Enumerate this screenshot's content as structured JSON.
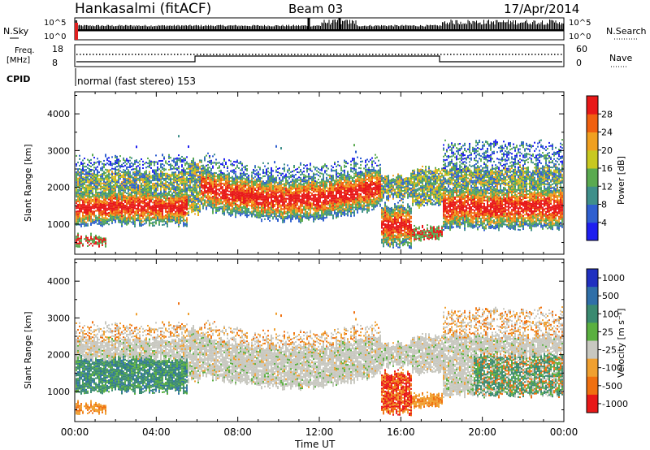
{
  "header": {
    "station": "Hankasalmi (fitACF)",
    "beam": "Beam 03",
    "date": "17/Apr/2014"
  },
  "status_panels": {
    "nsky_label": "N.Sky",
    "nsky_ticks": [
      "10^5",
      "10^0"
    ],
    "nsearch_label": "N.Search",
    "nsearch_ticks": [
      "10^5",
      "10^0"
    ],
    "freq_label_1": "Freq.",
    "freq_label_2": "[MHz]",
    "freq_ticks": [
      "18",
      "8"
    ],
    "nave_label": "Nave",
    "nave_ticks": [
      "60",
      "0"
    ],
    "cpid_label": "CPID",
    "cpid_text": "normal (fast stereo) 153"
  },
  "chart_data": [
    {
      "type": "heatmap",
      "name": "power",
      "ylabel": "Slant Range [km]",
      "yticks": [
        1000,
        2000,
        3000,
        4000
      ],
      "ylim": [
        180,
        4600
      ],
      "xlim": [
        "00:00",
        "24:00"
      ],
      "colorbar": {
        "label": "Power [dB]",
        "ticks": [
          "4",
          "8",
          "12",
          "16",
          "20",
          "24",
          "28"
        ],
        "colors": [
          "#1e1ef0",
          "#2f5fd0",
          "#3f8f8a",
          "#5aaa50",
          "#c8c820",
          "#f0a020",
          "#f06010",
          "#e81818"
        ]
      }
    },
    {
      "type": "heatmap",
      "name": "velocity",
      "ylabel": "Slant Range [km]",
      "yticks": [
        1000,
        2000,
        3000,
        4000
      ],
      "ylim": [
        180,
        4600
      ],
      "xlim": [
        "00:00",
        "24:00"
      ],
      "xlabel": "Time UT",
      "xticks": [
        "00:00",
        "04:00",
        "08:00",
        "12:00",
        "16:00",
        "20:00",
        "00:00"
      ],
      "colorbar": {
        "label": "Velocity [m s⁻¹]",
        "ticks": [
          "1000",
          "500",
          "100",
          "25",
          "-25",
          "-100",
          "-500",
          "-1000"
        ],
        "colors": [
          "#2030c0",
          "#2f6fa8",
          "#3a8a70",
          "#5ab040",
          "#c8c8c0",
          "#f0a030",
          "#f07010",
          "#e81818"
        ]
      }
    }
  ]
}
